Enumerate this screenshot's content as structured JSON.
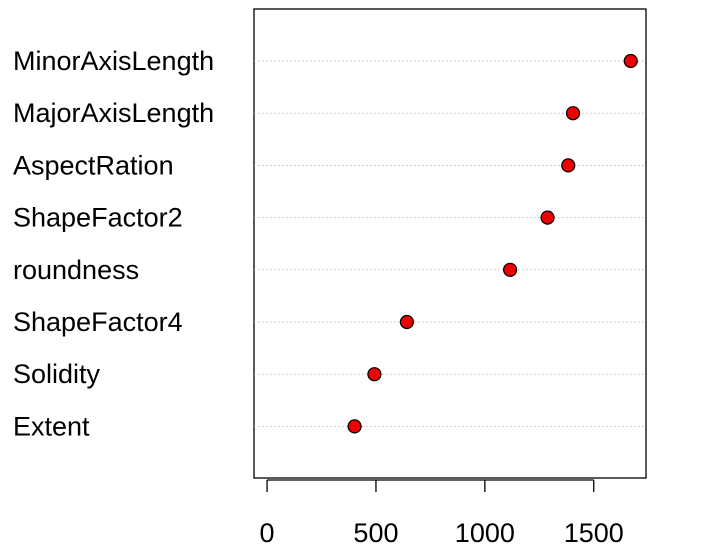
{
  "chart_data": {
    "type": "scatter",
    "subtype": "dotchart",
    "title": "",
    "xlabel": "",
    "ylabel": "",
    "categories": [
      "MinorAxisLength",
      "MajorAxisLength",
      "AspectRation",
      "ShapeFactor2",
      "roundness",
      "ShapeFactor4",
      "Solidity",
      "Extent"
    ],
    "values": [
      1670,
      1405,
      1383,
      1288,
      1116,
      642,
      493,
      402
    ],
    "xlim": [
      -60,
      1740
    ],
    "x_ticks": [
      0,
      500,
      1000,
      1500
    ],
    "x_tick_labels": [
      "0",
      "500",
      "1000",
      "1500"
    ],
    "grid": "dotted horizontal guide lines per category",
    "legend": "none",
    "colors": {
      "point_fill": "#ee0000",
      "point_stroke": "#000000",
      "guide_line": "#bdbdbd",
      "axis": "#000000"
    }
  }
}
